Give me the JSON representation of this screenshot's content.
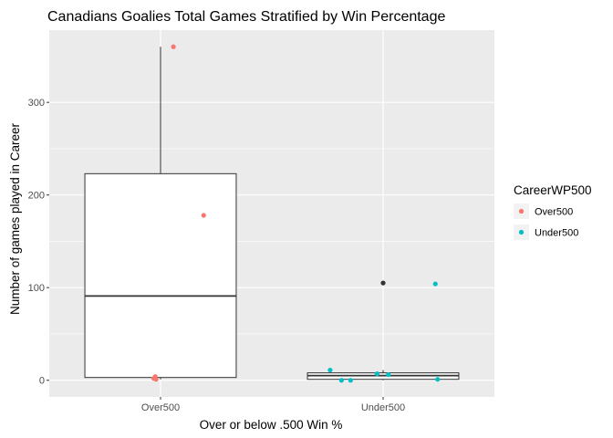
{
  "chart_data": {
    "type": "box",
    "title": "Canadians Goalies Total Games Stratified by Win Percentage",
    "xlabel": "Over or below .500 Win %",
    "ylabel": "Number of games played in Career",
    "categories": [
      "Over500",
      "Under500"
    ],
    "y_ticks": [
      0,
      100,
      200,
      300
    ],
    "ylim": [
      -18,
      378
    ],
    "grid": true,
    "legend": {
      "title": "CareerWP500",
      "placement": "right",
      "entries": [
        {
          "label": "Over500",
          "color": "#F8766D"
        },
        {
          "label": "Under500",
          "color": "#00BFC4"
        }
      ]
    },
    "boxes": [
      {
        "category": "Over500",
        "min": 1,
        "q1": 3,
        "median": 91,
        "q3": 223,
        "max": 360,
        "outliers": []
      },
      {
        "category": "Under500",
        "min": 0,
        "q1": 1,
        "median": 5,
        "q3": 8,
        "max": 11,
        "outliers": [
          105
        ]
      }
    ],
    "points": [
      {
        "category": "Over500",
        "jitter": 0.17,
        "y": 360,
        "group": "Over500"
      },
      {
        "category": "Over500",
        "jitter": 0.57,
        "y": 178,
        "group": "Over500"
      },
      {
        "category": "Over500",
        "jitter": -0.07,
        "y": 4,
        "group": "Over500"
      },
      {
        "category": "Over500",
        "jitter": -0.09,
        "y": 2,
        "group": "Over500"
      },
      {
        "category": "Over500",
        "jitter": -0.06,
        "y": 1,
        "group": "Over500"
      },
      {
        "category": "Under500",
        "jitter": -0.7,
        "y": 11,
        "group": "Under500"
      },
      {
        "category": "Under500",
        "jitter": -0.55,
        "y": 0,
        "group": "Under500"
      },
      {
        "category": "Under500",
        "jitter": -0.43,
        "y": 0,
        "group": "Under500"
      },
      {
        "category": "Under500",
        "jitter": -0.08,
        "y": 7,
        "group": "Under500"
      },
      {
        "category": "Under500",
        "jitter": 0.07,
        "y": 6,
        "group": "Under500"
      },
      {
        "category": "Under500",
        "jitter": 0.69,
        "y": 104,
        "group": "Under500"
      },
      {
        "category": "Under500",
        "jitter": 0.72,
        "y": 1,
        "group": "Under500"
      }
    ],
    "outlier_color": "#333333",
    "panel_color": "#EBEBEB"
  }
}
